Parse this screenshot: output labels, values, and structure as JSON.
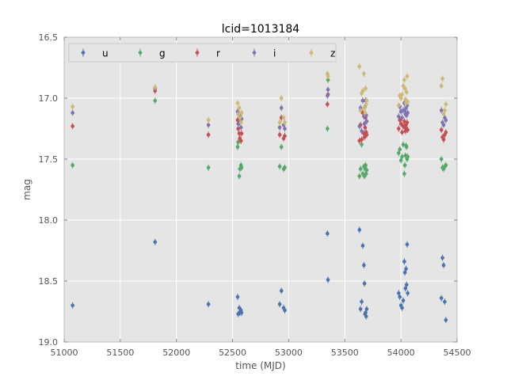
{
  "chart_data": {
    "type": "scatter",
    "title": "lcid=1013184",
    "xlabel": "time (MJD)",
    "ylabel": "mag",
    "xlim": [
      51000,
      54500
    ],
    "ylim": [
      16.5,
      19.0
    ],
    "y_inverted": true,
    "xticks": [
      "51000",
      "51500",
      "52000",
      "52500",
      "53000",
      "53500",
      "54000",
      "54500"
    ],
    "yticks": [
      "16.5",
      "17.0",
      "17.5",
      "18.0",
      "18.5",
      "19.0"
    ],
    "grid": true,
    "legend_placement": "top",
    "series": [
      {
        "name": "u",
        "color": "#4c72b0",
        "x": [
          51075,
          51810,
          52285,
          52545,
          52550,
          52560,
          52565,
          52575,
          52580,
          52920,
          52935,
          52955,
          52965,
          53345,
          53350,
          53630,
          53640,
          53650,
          53660,
          53670,
          53675,
          53680,
          53685,
          53690,
          53695,
          53980,
          53990,
          54000,
          54010,
          54020,
          54030,
          54035,
          54040,
          54045,
          54050,
          54055,
          54060,
          54360,
          54370,
          54380,
          54390,
          54400
        ],
        "y": [
          18.7,
          18.18,
          18.69,
          18.63,
          18.77,
          18.72,
          18.76,
          18.74,
          18.76,
          18.69,
          18.58,
          18.72,
          18.74,
          18.11,
          18.49,
          18.08,
          18.73,
          18.67,
          18.21,
          18.37,
          18.52,
          18.77,
          18.76,
          18.79,
          18.73,
          18.6,
          18.63,
          18.7,
          18.72,
          18.66,
          18.34,
          18.43,
          18.56,
          18.4,
          18.53,
          18.2,
          18.6,
          18.64,
          18.31,
          18.37,
          18.67,
          18.82
        ]
      },
      {
        "name": "g",
        "color": "#55a868",
        "x": [
          51075,
          51810,
          52285,
          52545,
          52550,
          52560,
          52565,
          52575,
          52580,
          52920,
          52935,
          52955,
          52965,
          53345,
          53350,
          53630,
          53640,
          53650,
          53660,
          53670,
          53675,
          53680,
          53685,
          53690,
          53695,
          53980,
          53990,
          54000,
          54010,
          54020,
          54030,
          54035,
          54040,
          54045,
          54050,
          54055,
          54060,
          54360,
          54370,
          54380,
          54390,
          54400
        ],
        "y": [
          17.55,
          17.02,
          17.57,
          17.4,
          17.36,
          17.64,
          17.58,
          17.55,
          17.57,
          17.56,
          17.4,
          17.58,
          17.57,
          17.25,
          16.85,
          17.64,
          17.58,
          17.38,
          17.62,
          17.56,
          17.64,
          17.58,
          17.55,
          17.62,
          17.59,
          17.45,
          17.42,
          17.51,
          17.48,
          17.38,
          17.62,
          17.55,
          17.47,
          17.39,
          17.4,
          17.5,
          17.48,
          17.5,
          17.57,
          17.58,
          17.56,
          17.55
        ]
      },
      {
        "name": "r",
        "color": "#c44e52",
        "x": [
          51075,
          51810,
          52285,
          52545,
          52550,
          52560,
          52565,
          52575,
          52580,
          52920,
          52935,
          52955,
          52965,
          53345,
          53350,
          53630,
          53640,
          53650,
          53660,
          53670,
          53675,
          53680,
          53685,
          53690,
          53695,
          53980,
          53990,
          54000,
          54010,
          54020,
          54030,
          54035,
          54040,
          54045,
          54050,
          54055,
          54060,
          54360,
          54370,
          54380,
          54390,
          54400
        ],
        "y": [
          17.23,
          16.94,
          17.3,
          17.18,
          17.25,
          17.29,
          17.33,
          17.35,
          17.29,
          17.3,
          17.16,
          17.33,
          17.31,
          17.05,
          16.97,
          17.35,
          17.22,
          17.34,
          17.12,
          17.29,
          17.32,
          17.24,
          17.16,
          17.28,
          17.3,
          17.25,
          17.18,
          17.21,
          17.28,
          17.23,
          17.19,
          17.24,
          17.27,
          17.22,
          17.25,
          17.2,
          17.26,
          17.26,
          17.32,
          17.34,
          17.3,
          17.28
        ]
      },
      {
        "name": "i",
        "color": "#8172b2",
        "x": [
          51075,
          51810,
          52285,
          52545,
          52550,
          52560,
          52565,
          52575,
          52580,
          52920,
          52935,
          52955,
          52965,
          53345,
          53350,
          53630,
          53640,
          53650,
          53660,
          53670,
          53675,
          53680,
          53685,
          53690,
          53695,
          53980,
          53990,
          54000,
          54010,
          54020,
          54030,
          54035,
          54040,
          54045,
          54050,
          54055,
          54060,
          54360,
          54370,
          54380,
          54390,
          54400
        ],
        "y": [
          17.12,
          16.92,
          17.22,
          17.11,
          17.21,
          17.14,
          17.2,
          17.24,
          17.17,
          17.24,
          17.08,
          17.22,
          17.25,
          16.98,
          16.93,
          17.23,
          17.08,
          17.27,
          17.02,
          17.15,
          17.21,
          17.07,
          17.02,
          17.14,
          17.19,
          17.15,
          17.07,
          17.11,
          17.16,
          17.1,
          17.04,
          17.1,
          17.13,
          17.08,
          17.14,
          17.06,
          17.12,
          17.1,
          17.2,
          17.22,
          17.16,
          17.18
        ]
      },
      {
        "name": "z",
        "color": "#ccb974",
        "x": [
          51075,
          51810,
          52285,
          52545,
          52550,
          52560,
          52565,
          52575,
          52580,
          52920,
          52935,
          52955,
          52965,
          53345,
          53350,
          53630,
          53640,
          53650,
          53660,
          53670,
          53675,
          53680,
          53685,
          53690,
          53695,
          53980,
          53990,
          54000,
          54010,
          54020,
          54030,
          54035,
          54040,
          54045,
          54050,
          54055,
          54060,
          54360,
          54370,
          54380,
          54390,
          54400
        ],
        "y": [
          17.07,
          16.91,
          17.18,
          17.04,
          17.13,
          17.08,
          17.16,
          17.2,
          17.12,
          17.2,
          17.0,
          17.16,
          17.2,
          16.8,
          16.82,
          16.74,
          17.1,
          16.96,
          16.94,
          16.8,
          17.08,
          17.12,
          16.92,
          17.05,
          17.02,
          17.06,
          16.98,
          17.0,
          16.97,
          16.9,
          16.85,
          16.92,
          17.01,
          17.04,
          16.95,
          16.82,
          17.03,
          16.9,
          16.84,
          17.13,
          17.1,
          17.05
        ]
      }
    ]
  }
}
